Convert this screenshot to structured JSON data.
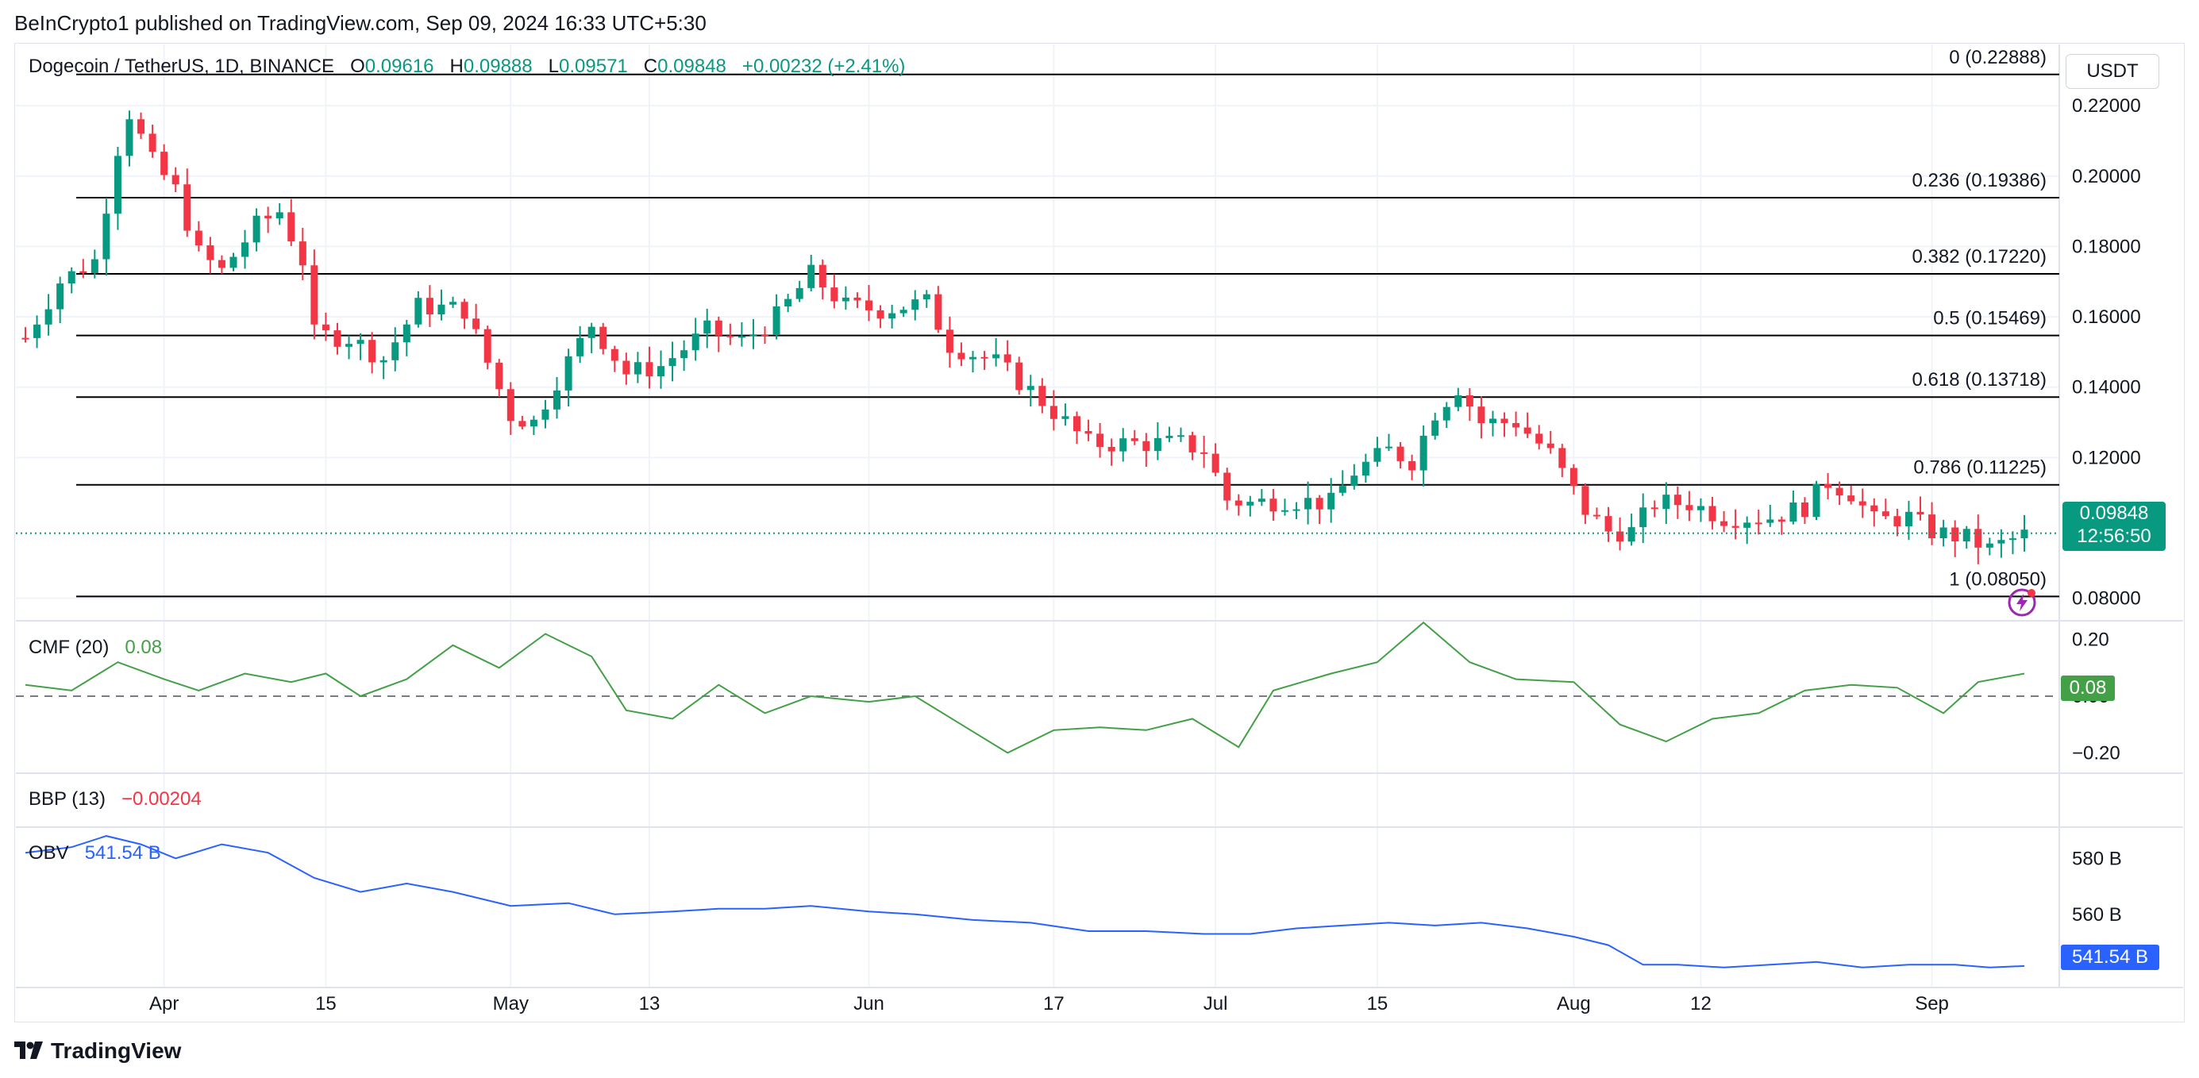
{
  "header": {
    "publisher": "BeInCrypto1 published on TradingView.com, Sep 09, 2024 16:33 UTC+5:30"
  },
  "legend": {
    "title": "Dogecoin / TetherUS, 1D, BINANCE",
    "o_label": "O",
    "o_value": "0.09616",
    "h_label": "H",
    "h_value": "0.09888",
    "l_label": "L",
    "l_value": "0.09571",
    "c_label": "C",
    "c_value": "0.09848",
    "change": "+0.00232 (+2.41%)"
  },
  "currency": "USDT",
  "last_price": {
    "value": "0.09848",
    "countdown": "12:56:50"
  },
  "indicators": {
    "cmf": {
      "name": "CMF (20)",
      "value": "0.08",
      "tag": "0.08"
    },
    "bbp": {
      "name": "BBP (13)",
      "value": "−0.00204"
    },
    "obv": {
      "name": "OBV",
      "value": "541.54 B",
      "tag": "541.54 B"
    }
  },
  "footer": {
    "brand": "TradingView"
  },
  "colors": {
    "up": "#089981",
    "down": "#f23645",
    "cmf_line": "#43a047",
    "obv_line": "#2962ff",
    "grid": "#f0f3fa",
    "fib": "#000000",
    "text": "#131722",
    "bbp_neg": "#f23645"
  },
  "icons": {
    "flash": "flash-icon",
    "logo": "tradingview-logo-icon"
  },
  "chart_data": {
    "type": "candlestick",
    "symbol": "Dogecoin / TetherUS",
    "interval": "1D",
    "exchange": "BINANCE",
    "price_axis": {
      "ticks": [
        "0.22000",
        "0.20000",
        "0.18000",
        "0.16000",
        "0.14000",
        "0.12000",
        "0.08000"
      ],
      "range": [
        0.0745,
        0.2365
      ]
    },
    "x_ticks": [
      "Apr",
      "15",
      "May",
      "13",
      "Jun",
      "17",
      "Jul",
      "15",
      "Aug",
      "12",
      "Sep"
    ],
    "x_tick_dates": [
      "2024-04-01",
      "2024-04-15",
      "2024-05-01",
      "2024-05-13",
      "2024-06-01",
      "2024-06-17",
      "2024-07-01",
      "2024-07-15",
      "2024-08-01",
      "2024-08-12",
      "2024-09-01"
    ],
    "date_range": [
      "2024-03-20",
      "2024-09-09"
    ],
    "fib_levels": [
      {
        "label": "0 (0.22888)",
        "value": 0.22888
      },
      {
        "label": "0.236 (0.19386)",
        "value": 0.19386
      },
      {
        "label": "0.382 (0.17220)",
        "value": 0.1722
      },
      {
        "label": "0.5 (0.15469)",
        "value": 0.15469
      },
      {
        "label": "0.618 (0.13718)",
        "value": 0.13718
      },
      {
        "label": "0.786 (0.11225)",
        "value": 0.11225
      },
      {
        "label": "1 (0.08050)",
        "value": 0.0805
      }
    ],
    "anchors": [
      [
        "2024-03-20",
        0.154
      ],
      [
        "2024-03-23",
        0.17
      ],
      [
        "2024-03-26",
        0.176
      ],
      [
        "2024-03-28",
        0.208
      ],
      [
        "2024-03-29",
        0.218
      ],
      [
        "2024-03-31",
        0.204
      ],
      [
        "2024-04-02",
        0.196
      ],
      [
        "2024-04-04",
        0.178
      ],
      [
        "2024-04-06",
        0.173
      ],
      [
        "2024-04-09",
        0.186
      ],
      [
        "2024-04-11",
        0.19
      ],
      [
        "2024-04-13",
        0.176
      ],
      [
        "2024-04-14",
        0.155
      ],
      [
        "2024-04-17",
        0.154
      ],
      [
        "2024-04-20",
        0.148
      ],
      [
        "2024-04-23",
        0.163
      ],
      [
        "2024-04-27",
        0.162
      ],
      [
        "2024-05-01",
        0.132
      ],
      [
        "2024-05-03",
        0.13
      ],
      [
        "2024-05-05",
        0.142
      ],
      [
        "2024-05-08",
        0.158
      ],
      [
        "2024-05-11",
        0.144
      ],
      [
        "2024-05-14",
        0.146
      ],
      [
        "2024-05-18",
        0.156
      ],
      [
        "2024-05-21",
        0.153
      ],
      [
        "2024-05-24",
        0.16
      ],
      [
        "2024-05-27",
        0.172
      ],
      [
        "2024-05-30",
        0.163
      ],
      [
        "2024-06-02",
        0.162
      ],
      [
        "2024-06-06",
        0.164
      ],
      [
        "2024-06-08",
        0.152
      ],
      [
        "2024-06-12",
        0.147
      ],
      [
        "2024-06-15",
        0.139
      ],
      [
        "2024-06-18",
        0.13
      ],
      [
        "2024-06-20",
        0.124
      ],
      [
        "2024-06-25",
        0.124
      ],
      [
        "2024-06-28",
        0.124
      ],
      [
        "2024-06-30",
        0.122
      ],
      [
        "2024-07-02",
        0.108
      ],
      [
        "2024-07-04",
        0.107
      ],
      [
        "2024-07-07",
        0.108
      ],
      [
        "2024-07-11",
        0.107
      ],
      [
        "2024-07-13",
        0.116
      ],
      [
        "2024-07-16",
        0.122
      ],
      [
        "2024-07-18",
        0.119
      ],
      [
        "2024-07-20",
        0.133
      ],
      [
        "2024-07-22",
        0.14
      ],
      [
        "2024-07-24",
        0.13
      ],
      [
        "2024-07-27",
        0.13
      ],
      [
        "2024-07-30",
        0.121
      ],
      [
        "2024-08-02",
        0.105
      ],
      [
        "2024-08-04",
        0.099
      ],
      [
        "2024-08-06",
        0.099
      ],
      [
        "2024-08-08",
        0.107
      ],
      [
        "2024-08-11",
        0.107
      ],
      [
        "2024-08-14",
        0.103
      ],
      [
        "2024-08-18",
        0.103
      ],
      [
        "2024-08-21",
        0.106
      ],
      [
        "2024-08-23",
        0.113
      ],
      [
        "2024-08-25",
        0.11
      ],
      [
        "2024-08-27",
        0.102
      ],
      [
        "2024-08-30",
        0.103
      ],
      [
        "2024-09-01",
        0.099
      ],
      [
        "2024-09-04",
        0.097
      ],
      [
        "2024-09-06",
        0.094
      ],
      [
        "2024-09-09",
        0.098
      ]
    ],
    "cmf": {
      "name": "CMF (20)",
      "axis_ticks": [
        "0.20",
        "0.00",
        "−0.20"
      ],
      "range": [
        -0.255,
        0.255
      ],
      "points": [
        [
          "2024-03-20",
          0.04
        ],
        [
          "2024-03-24",
          0.02
        ],
        [
          "2024-03-28",
          0.12
        ],
        [
          "2024-04-01",
          0.06
        ],
        [
          "2024-04-04",
          0.02
        ],
        [
          "2024-04-08",
          0.08
        ],
        [
          "2024-04-12",
          0.05
        ],
        [
          "2024-04-15",
          0.08
        ],
        [
          "2024-04-18",
          0.0
        ],
        [
          "2024-04-22",
          0.06
        ],
        [
          "2024-04-26",
          0.18
        ],
        [
          "2024-04-30",
          0.1
        ],
        [
          "2024-05-04",
          0.22
        ],
        [
          "2024-05-08",
          0.14
        ],
        [
          "2024-05-11",
          -0.05
        ],
        [
          "2024-05-15",
          -0.08
        ],
        [
          "2024-05-19",
          0.04
        ],
        [
          "2024-05-23",
          -0.06
        ],
        [
          "2024-05-27",
          0.0
        ],
        [
          "2024-06-01",
          -0.02
        ],
        [
          "2024-06-05",
          0.0
        ],
        [
          "2024-06-09",
          -0.1
        ],
        [
          "2024-06-13",
          -0.2
        ],
        [
          "2024-06-17",
          -0.12
        ],
        [
          "2024-06-21",
          -0.11
        ],
        [
          "2024-06-25",
          -0.12
        ],
        [
          "2024-06-29",
          -0.08
        ],
        [
          "2024-07-03",
          -0.18
        ],
        [
          "2024-07-06",
          0.02
        ],
        [
          "2024-07-11",
          0.08
        ],
        [
          "2024-07-15",
          0.12
        ],
        [
          "2024-07-19",
          0.26
        ],
        [
          "2024-07-23",
          0.12
        ],
        [
          "2024-07-27",
          0.06
        ],
        [
          "2024-08-01",
          0.05
        ],
        [
          "2024-08-05",
          -0.1
        ],
        [
          "2024-08-09",
          -0.16
        ],
        [
          "2024-08-13",
          -0.08
        ],
        [
          "2024-08-17",
          -0.06
        ],
        [
          "2024-08-21",
          0.02
        ],
        [
          "2024-08-25",
          0.04
        ],
        [
          "2024-08-29",
          0.03
        ],
        [
          "2024-09-02",
          -0.06
        ],
        [
          "2024-09-05",
          0.05
        ],
        [
          "2024-09-09",
          0.08
        ]
      ]
    },
    "bbp": {
      "name": "BBP (13)",
      "value": -0.00204
    },
    "obv": {
      "name": "OBV",
      "unit": "B",
      "axis_ticks": [
        "580 B",
        "560 B"
      ],
      "range": [
        535,
        590
      ],
      "points": [
        [
          "2024-03-20",
          582
        ],
        [
          "2024-03-24",
          584
        ],
        [
          "2024-03-27",
          588
        ],
        [
          "2024-03-30",
          585
        ],
        [
          "2024-04-02",
          580
        ],
        [
          "2024-04-06",
          585
        ],
        [
          "2024-04-10",
          582
        ],
        [
          "2024-04-14",
          573
        ],
        [
          "2024-04-18",
          568
        ],
        [
          "2024-04-22",
          571
        ],
        [
          "2024-04-26",
          568
        ],
        [
          "2024-05-01",
          563
        ],
        [
          "2024-05-06",
          564
        ],
        [
          "2024-05-10",
          560
        ],
        [
          "2024-05-15",
          561
        ],
        [
          "2024-05-19",
          562
        ],
        [
          "2024-05-23",
          562
        ],
        [
          "2024-05-27",
          563
        ],
        [
          "2024-06-01",
          561
        ],
        [
          "2024-06-05",
          560
        ],
        [
          "2024-06-10",
          558
        ],
        [
          "2024-06-15",
          557
        ],
        [
          "2024-06-20",
          554
        ],
        [
          "2024-06-25",
          554
        ],
        [
          "2024-06-30",
          553
        ],
        [
          "2024-07-04",
          553
        ],
        [
          "2024-07-08",
          555
        ],
        [
          "2024-07-12",
          556
        ],
        [
          "2024-07-16",
          557
        ],
        [
          "2024-07-20",
          556
        ],
        [
          "2024-07-24",
          557
        ],
        [
          "2024-07-28",
          555
        ],
        [
          "2024-08-01",
          552
        ],
        [
          "2024-08-04",
          549
        ],
        [
          "2024-08-07",
          542
        ],
        [
          "2024-08-10",
          542
        ],
        [
          "2024-08-14",
          541
        ],
        [
          "2024-08-18",
          542
        ],
        [
          "2024-08-22",
          543
        ],
        [
          "2024-08-26",
          541
        ],
        [
          "2024-08-30",
          542
        ],
        [
          "2024-09-03",
          542
        ],
        [
          "2024-09-06",
          541
        ],
        [
          "2024-09-09",
          541.54
        ]
      ]
    }
  }
}
